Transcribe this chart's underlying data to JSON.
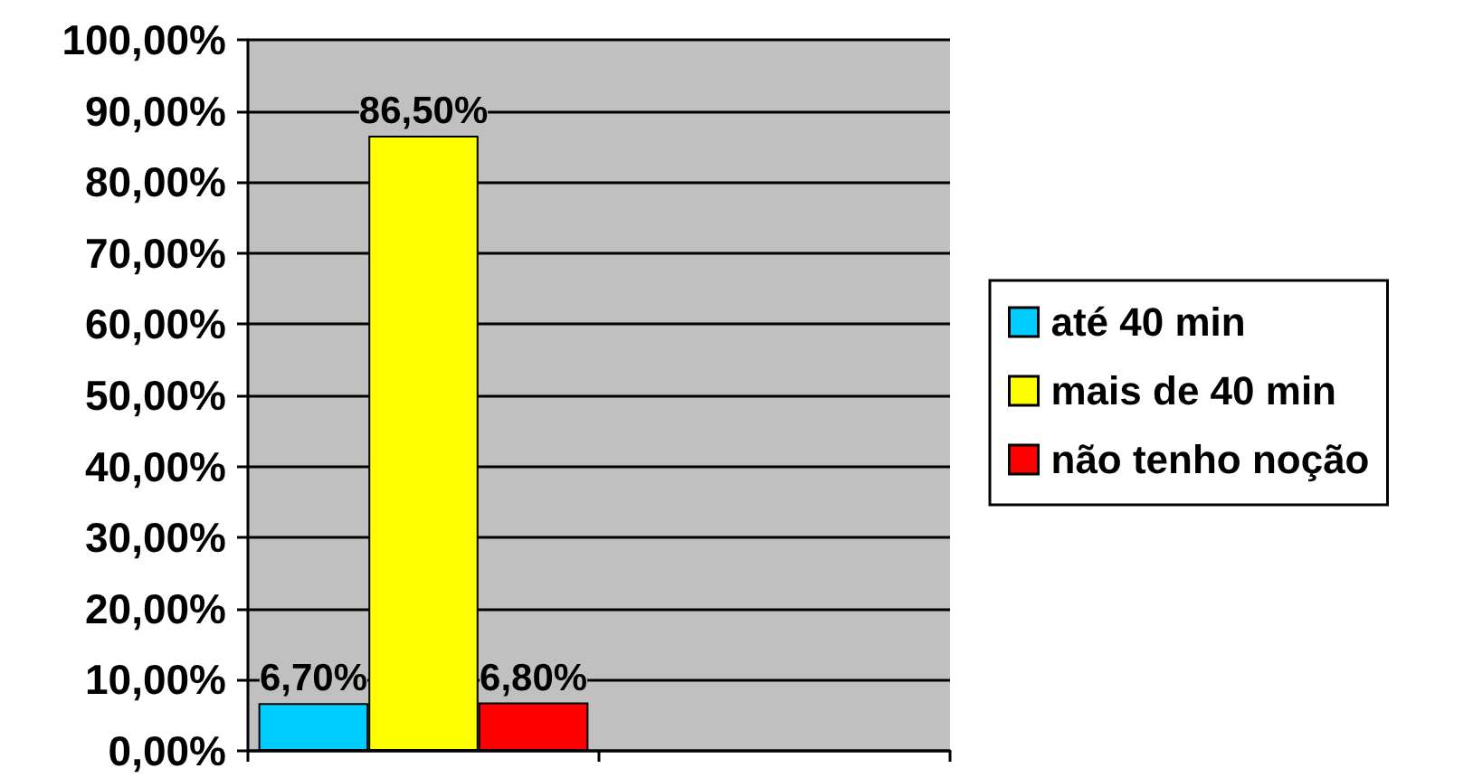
{
  "chart_data": {
    "type": "bar",
    "categories": [
      null,
      null
    ],
    "series": [
      {
        "name": "até 40 min",
        "color": "#00ccff",
        "values": [
          6.7,
          null
        ],
        "value_labels": [
          "6,70%",
          null
        ]
      },
      {
        "name": "mais de 40 min",
        "color": "#ffff00",
        "values": [
          86.5,
          null
        ],
        "value_labels": [
          "86,50%",
          null
        ]
      },
      {
        "name": "não tenho noção",
        "color": "#ff0000",
        "values": [
          6.8,
          null
        ],
        "value_labels": [
          "6,80%",
          null
        ]
      }
    ],
    "ylim": [
      0,
      100
    ],
    "yticks": [
      {
        "value": 0,
        "label": "0,00%"
      },
      {
        "value": 10,
        "label": "10,00%"
      },
      {
        "value": 20,
        "label": "20,00%"
      },
      {
        "value": 30,
        "label": "30,00%"
      },
      {
        "value": 40,
        "label": "40,00%"
      },
      {
        "value": 50,
        "label": "50,00%"
      },
      {
        "value": 60,
        "label": "60,00%"
      },
      {
        "value": 70,
        "label": "70,00%"
      },
      {
        "value": 80,
        "label": "80,00%"
      },
      {
        "value": 90,
        "label": "90,00%"
      },
      {
        "value": 100,
        "label": "100,00%"
      }
    ],
    "grid": "y",
    "legend": "right"
  }
}
